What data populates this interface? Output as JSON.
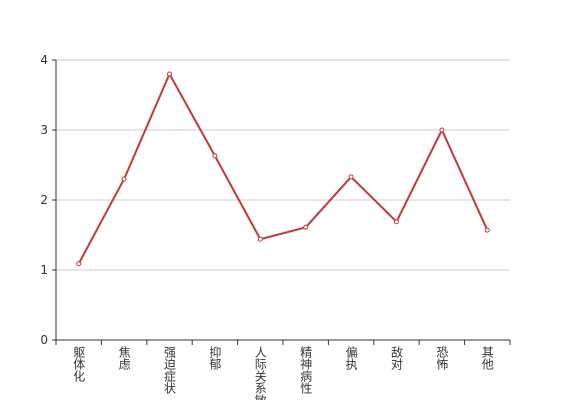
{
  "chart_data": {
    "type": "line",
    "categories": [
      "躯体化",
      "焦虑",
      "强迫症状",
      "抑郁",
      "人际关系敏感",
      "精神病性",
      "偏执",
      "敌对",
      "恐怖",
      "其他"
    ],
    "values": [
      1.09,
      2.3,
      3.8,
      2.63,
      1.44,
      1.61,
      2.33,
      1.69,
      3.0,
      1.57
    ],
    "color": "#c0393b",
    "ylim": [
      0,
      4
    ],
    "yticks": [
      0,
      1,
      2,
      3,
      4
    ],
    "grid": true
  }
}
